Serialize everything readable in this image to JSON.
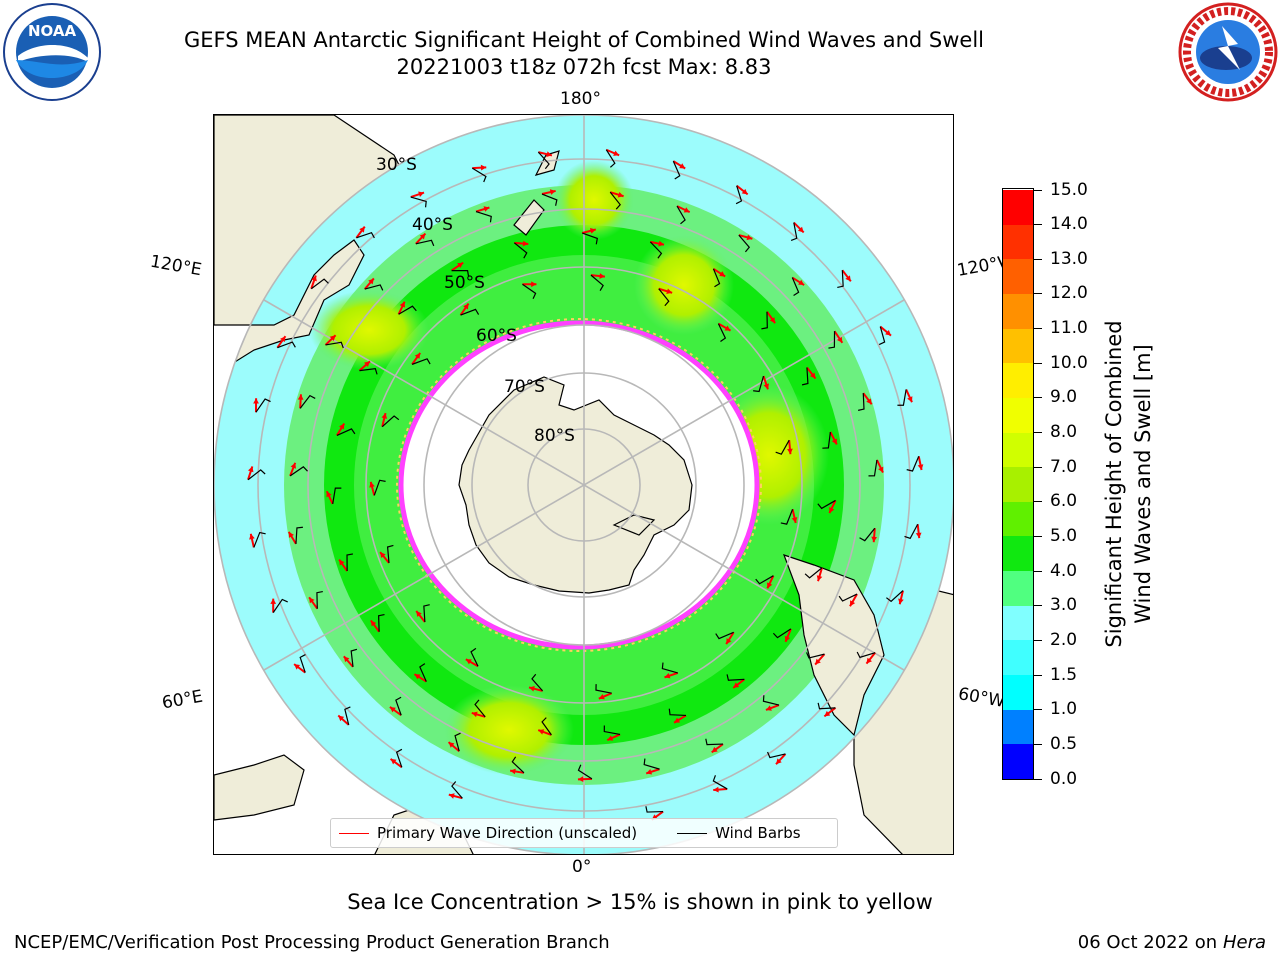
{
  "title_line1": "GEFS MEAN Antarctic Significant Height of Combined Wind Waves and Swell",
  "title_line2": "20221003 t18z 072h fcst   Max: 8.83",
  "logos": {
    "left": "noaa-logo",
    "left_text": "NOAA",
    "right": "nws-logo"
  },
  "longitude_labels": {
    "top": "180°",
    "bottom": "0°",
    "upper_left": "120°E",
    "upper_right": "120°W",
    "lower_left": "60°E",
    "lower_right": "60°W"
  },
  "latitude_labels": [
    "30°S",
    "40°S",
    "50°S",
    "60°S",
    "70°S",
    "80°S"
  ],
  "legend": {
    "primary_wave": "Primary Wave Direction (unscaled)",
    "wind_barbs": "Wind Barbs",
    "primary_color": "#ff0000",
    "barb_color": "#000000"
  },
  "colorbar": {
    "title_line1": "Significant Height of Combined",
    "title_line2": "Wind Waves and Swell [m]",
    "ticks": [
      "0.0",
      "0.5",
      "1.0",
      "1.5",
      "2.0",
      "3.0",
      "4.0",
      "5.0",
      "6.0",
      "7.0",
      "8.0",
      "9.0",
      "10.0",
      "11.0",
      "12.0",
      "13.0",
      "14.0",
      "15.0"
    ],
    "colors": [
      "#0000ff",
      "#0080ff",
      "#00ffff",
      "#40ffff",
      "#80ffff",
      "#50ff80",
      "#10e810",
      "#60f000",
      "#a8f000",
      "#d0ff00",
      "#f0ff00",
      "#ffee00",
      "#ffc000",
      "#ff9000",
      "#ff6000",
      "#ff3000",
      "#ff0000"
    ]
  },
  "colors": {
    "land": "#efedd9",
    "ocean_low": "#9cfcfc",
    "ocean_mid": "#5cf470",
    "ocean_high": "#e0f800",
    "ice_edge": "#ff40ff",
    "grid": "#b8b8b8"
  },
  "sea_ice_note": "Sea Ice Concentration > 15% is shown in pink to yellow",
  "footer_left": "NCEP/EMC/Verification Post Processing Product Generation Branch",
  "footer_right_date": "06 Oct 2022 on",
  "footer_right_host": "Hera"
}
